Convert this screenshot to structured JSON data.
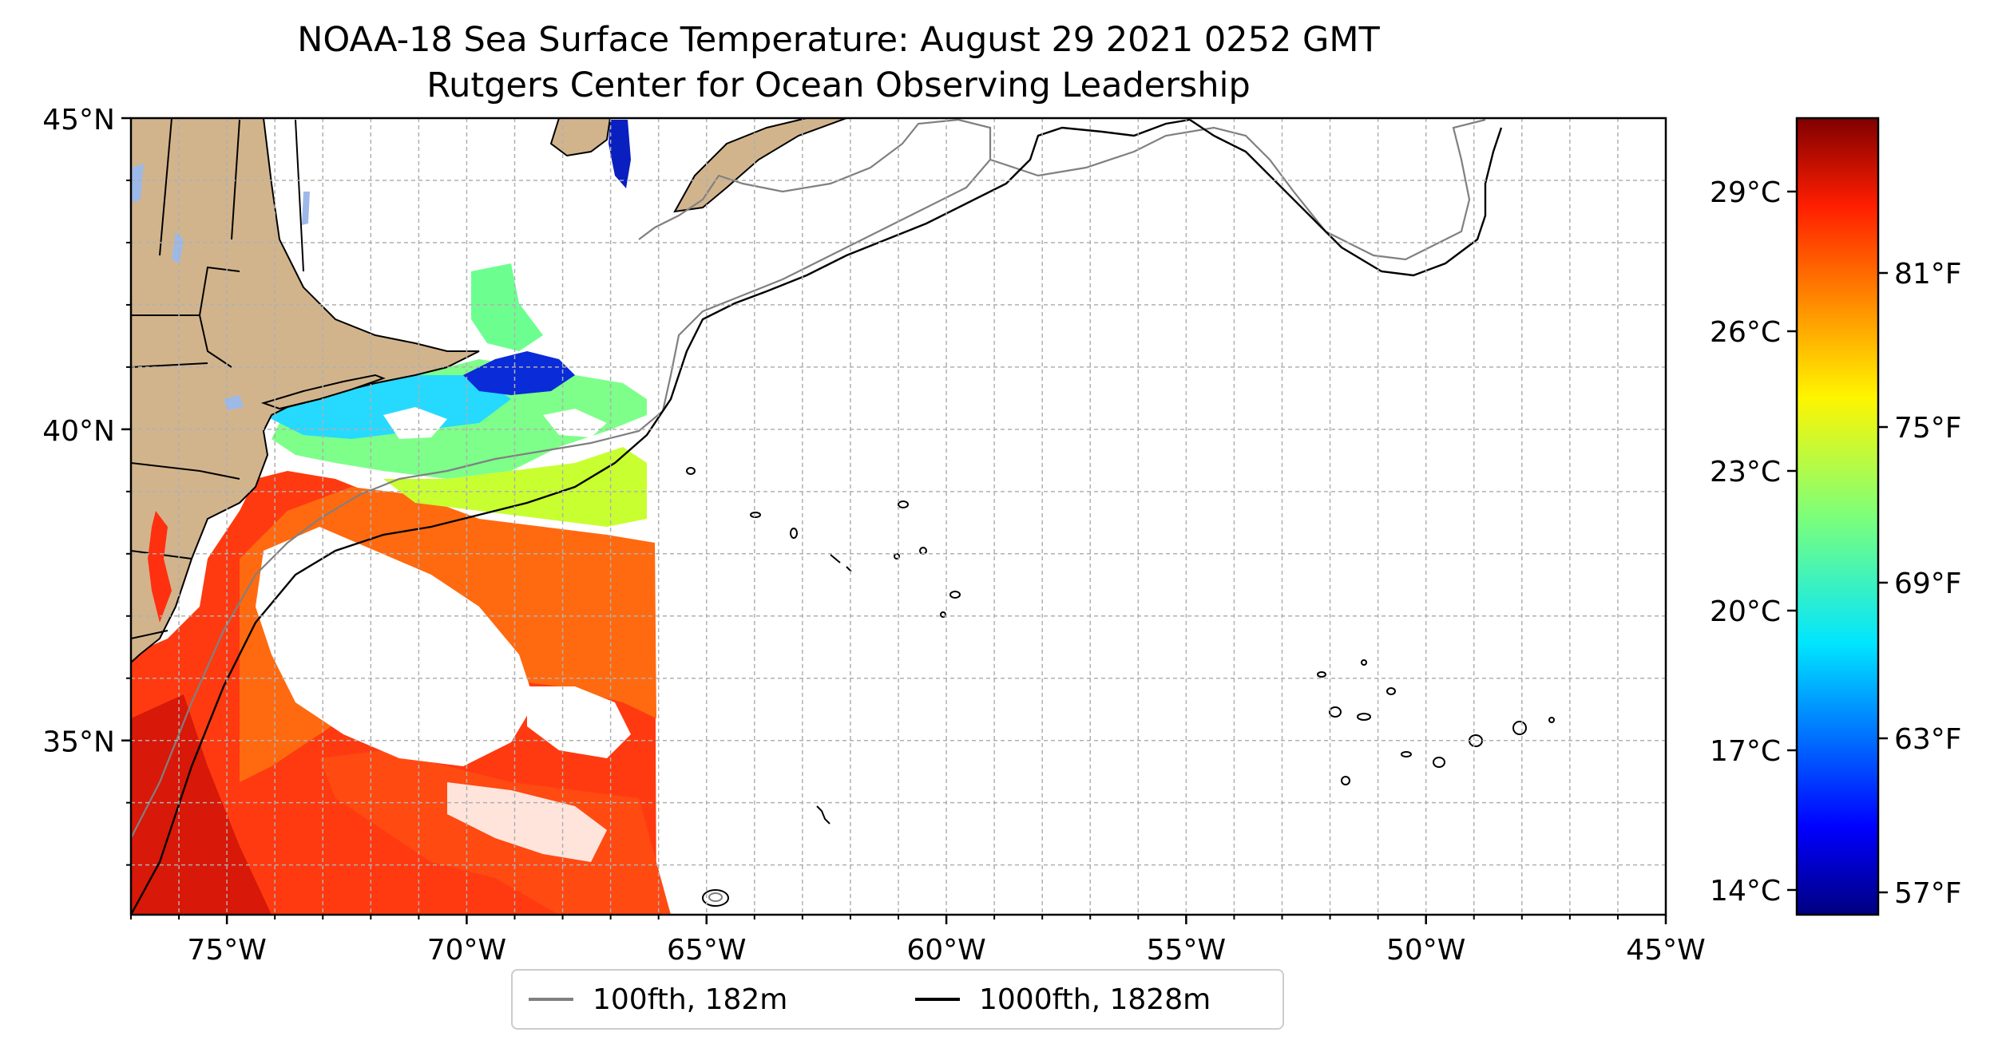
{
  "title": {
    "line1": "NOAA-18 Sea Surface Temperature: August 29 2021 0252 GMT",
    "line2": "Rutgers Center for Ocean Observing Leadership"
  },
  "map": {
    "lat_range": [
      32.2,
      45
    ],
    "lon_range": [
      -77,
      -45
    ],
    "lat_ticks": [
      {
        "value": 45,
        "label": "45°N"
      },
      {
        "value": 40,
        "label": "40°N"
      },
      {
        "value": 35,
        "label": "35°N"
      }
    ],
    "lon_ticks": [
      {
        "value": -75,
        "label": "75°W"
      },
      {
        "value": -70,
        "label": "70°W"
      },
      {
        "value": -65,
        "label": "65°W"
      },
      {
        "value": -60,
        "label": "60°W"
      },
      {
        "value": -55,
        "label": "55°W"
      },
      {
        "value": -50,
        "label": "50°W"
      },
      {
        "value": -45,
        "label": "45°W"
      }
    ],
    "gridlines": "dashed, every 1 degree",
    "land_color": "#d2b48c",
    "lake_color": "#9db9e8"
  },
  "colorbar": {
    "colormap": "jet",
    "celsius_ticks": [
      "29°C",
      "26°C",
      "23°C",
      "20°C",
      "17°C",
      "14°C"
    ],
    "fahrenheit_ticks": [
      "81°F",
      "75°F",
      "69°F",
      "63°F",
      "57°F"
    ]
  },
  "legend": {
    "items": [
      {
        "label": "100fth, 182m",
        "color": "#808080"
      },
      {
        "label": "1000fth, 1828m",
        "color": "#000000"
      }
    ]
  }
}
